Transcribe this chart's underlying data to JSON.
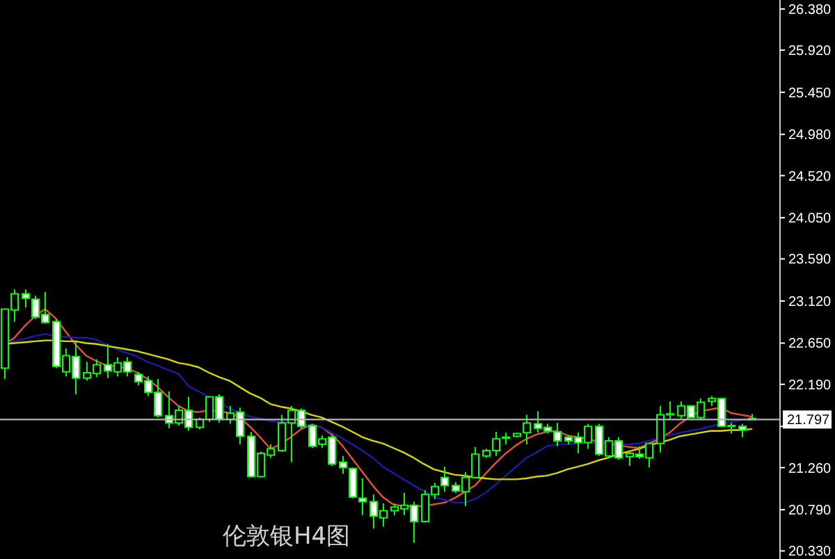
{
  "chart_data": {
    "type": "candlestick",
    "title": "伦敦银H4图",
    "categories": [
      null,
      null,
      null,
      null,
      null,
      null,
      null,
      null,
      null,
      null,
      null,
      null,
      null,
      null,
      null,
      null,
      null,
      null,
      null,
      null,
      null,
      null,
      null,
      null,
      null,
      null,
      null,
      null,
      null,
      null,
      null,
      null,
      null,
      null,
      null,
      null,
      null,
      null,
      null,
      null,
      null,
      null,
      null,
      null,
      null,
      null,
      null,
      null,
      null,
      null,
      null,
      null,
      null,
      null,
      null,
      null,
      null,
      null,
      null,
      null,
      null,
      null,
      null,
      null,
      null,
      null,
      null,
      null,
      null,
      null,
      null,
      null,
      null,
      null
    ],
    "ohlc": [
      [
        22.37,
        23.03,
        22.25,
        23.03
      ],
      [
        23.02,
        23.25,
        22.89,
        23.2
      ],
      [
        23.2,
        23.25,
        23.05,
        23.15
      ],
      [
        23.14,
        23.18,
        22.92,
        22.94
      ],
      [
        22.97,
        23.22,
        22.87,
        22.88
      ],
      [
        22.89,
        22.92,
        22.37,
        22.39
      ],
      [
        22.33,
        22.59,
        22.28,
        22.51
      ],
      [
        22.5,
        22.66,
        22.08,
        22.26
      ],
      [
        22.26,
        22.44,
        22.23,
        22.32
      ],
      [
        22.31,
        22.47,
        22.27,
        22.41
      ],
      [
        22.41,
        22.64,
        22.26,
        22.34
      ],
      [
        22.33,
        22.49,
        22.28,
        22.43
      ],
      [
        22.44,
        22.49,
        22.28,
        22.33
      ],
      [
        22.3,
        22.33,
        22.18,
        22.22
      ],
      [
        22.23,
        22.28,
        22.06,
        22.1
      ],
      [
        22.1,
        22.25,
        21.82,
        21.84
      ],
      [
        21.84,
        22.11,
        21.7,
        21.76
      ],
      [
        21.76,
        21.95,
        21.73,
        21.9
      ],
      [
        21.9,
        22.05,
        21.67,
        21.71
      ],
      [
        21.71,
        21.82,
        21.69,
        21.8
      ],
      [
        21.8,
        22.06,
        21.77,
        22.05
      ],
      [
        22.05,
        22.08,
        21.76,
        21.8
      ],
      [
        21.8,
        21.95,
        21.75,
        21.87
      ],
      [
        21.88,
        21.93,
        21.52,
        21.61
      ],
      [
        21.61,
        21.66,
        21.15,
        21.16
      ],
      [
        21.16,
        21.44,
        21.15,
        21.42
      ],
      [
        21.4,
        21.52,
        21.37,
        21.47
      ],
      [
        21.45,
        21.85,
        21.44,
        21.76
      ],
      [
        21.76,
        21.95,
        21.32,
        21.9
      ],
      [
        21.9,
        21.92,
        21.7,
        21.72
      ],
      [
        21.73,
        21.75,
        21.48,
        21.5
      ],
      [
        21.52,
        21.62,
        21.48,
        21.58
      ],
      [
        21.6,
        21.62,
        21.28,
        21.3
      ],
      [
        21.32,
        21.39,
        21.19,
        21.26
      ],
      [
        21.25,
        21.26,
        20.92,
        20.93
      ],
      [
        20.92,
        21.14,
        20.73,
        20.88
      ],
      [
        20.88,
        20.96,
        20.58,
        20.72
      ],
      [
        20.7,
        20.86,
        20.6,
        20.78
      ],
      [
        20.78,
        20.86,
        20.73,
        20.82
      ],
      [
        20.8,
        20.98,
        20.73,
        20.84
      ],
      [
        20.84,
        20.88,
        20.42,
        20.66
      ],
      [
        20.66,
        21.01,
        20.65,
        20.96
      ],
      [
        20.96,
        21.09,
        20.91,
        21.05
      ],
      [
        21.15,
        21.27,
        20.99,
        21.06
      ],
      [
        21.06,
        21.1,
        20.98,
        21.0
      ],
      [
        20.99,
        21.21,
        20.83,
        21.15
      ],
      [
        21.15,
        21.49,
        21.14,
        21.41
      ],
      [
        21.39,
        21.47,
        21.37,
        21.45
      ],
      [
        21.45,
        21.66,
        21.39,
        21.58
      ],
      [
        21.59,
        21.65,
        21.52,
        21.6
      ],
      [
        21.61,
        21.65,
        21.6,
        21.64
      ],
      [
        21.65,
        21.85,
        21.52,
        21.76
      ],
      [
        21.75,
        21.89,
        21.65,
        21.7
      ],
      [
        21.71,
        21.75,
        21.64,
        21.67
      ],
      [
        21.66,
        21.76,
        21.5,
        21.56
      ],
      [
        21.6,
        21.62,
        21.52,
        21.56
      ],
      [
        21.6,
        21.65,
        21.42,
        21.54
      ],
      [
        21.54,
        21.75,
        21.47,
        21.72
      ],
      [
        21.72,
        21.75,
        21.39,
        21.41
      ],
      [
        21.39,
        21.6,
        21.37,
        21.56
      ],
      [
        21.56,
        21.6,
        21.35,
        21.37
      ],
      [
        21.38,
        21.44,
        21.28,
        21.42
      ],
      [
        21.41,
        21.5,
        21.36,
        21.38
      ],
      [
        21.37,
        21.54,
        21.26,
        21.53
      ],
      [
        21.53,
        21.95,
        21.43,
        21.85
      ],
      [
        21.85,
        22.0,
        21.8,
        21.86
      ],
      [
        21.84,
        22.0,
        21.81,
        21.95
      ],
      [
        21.95,
        21.96,
        21.81,
        21.82
      ],
      [
        21.82,
        22.03,
        21.8,
        21.99
      ],
      [
        22.0,
        22.06,
        21.95,
        22.03
      ],
      [
        22.03,
        22.04,
        21.71,
        21.72
      ],
      [
        21.73,
        21.76,
        21.64,
        21.72
      ],
      [
        21.72,
        21.75,
        21.6,
        21.68
      ],
      [
        21.81,
        21.86,
        21.79,
        21.797
      ]
    ],
    "color": "#00ff00",
    "series": [
      {
        "type": "line",
        "color": "#e8503a",
        "values": [
          22.63,
          22.71,
          22.84,
          22.95,
          23.03,
          22.93,
          22.78,
          22.63,
          22.51,
          22.45,
          22.4,
          22.39,
          22.37,
          22.32,
          22.25,
          22.16,
          22.05,
          21.95,
          21.89,
          21.88,
          21.9,
          21.89,
          21.87,
          21.82,
          21.72,
          21.6,
          21.47,
          21.52,
          21.6,
          21.69,
          21.74,
          21.71,
          21.63,
          21.51,
          21.36,
          21.21,
          21.06,
          20.93,
          20.85,
          20.83,
          20.83,
          20.83,
          20.85,
          20.87,
          20.92,
          20.99,
          21.06,
          21.19,
          21.31,
          21.42,
          21.51,
          21.58,
          21.63,
          21.66,
          21.67,
          21.62,
          21.6,
          21.58,
          21.55,
          21.53,
          21.51,
          21.49,
          21.48,
          21.53,
          21.58,
          21.65,
          21.75,
          21.83,
          21.89,
          21.91,
          21.93,
          21.87,
          21.85,
          21.83
        ]
      },
      {
        "type": "line",
        "color": "#1c1ca8",
        "values": [
          22.65,
          22.67,
          22.7,
          22.73,
          22.75,
          22.73,
          22.72,
          22.71,
          22.71,
          22.69,
          22.63,
          22.58,
          22.54,
          22.5,
          22.44,
          22.4,
          22.35,
          22.31,
          22.17,
          22.11,
          22.05,
          21.99,
          21.92,
          21.88,
          21.83,
          21.81,
          21.78,
          21.77,
          21.76,
          21.74,
          21.73,
          21.71,
          21.65,
          21.59,
          21.52,
          21.45,
          21.37,
          21.27,
          21.2,
          21.13,
          21.06,
          21.0,
          20.93,
          20.9,
          20.87,
          20.87,
          20.91,
          20.98,
          21.07,
          21.17,
          21.27,
          21.37,
          21.43,
          21.5,
          21.52,
          21.52,
          21.53,
          21.54,
          21.54,
          21.54,
          21.53,
          21.52,
          21.53,
          21.56,
          21.59,
          21.62,
          21.65,
          21.67,
          21.69,
          21.72,
          21.75,
          21.77,
          21.79,
          21.8
        ]
      },
      {
        "type": "line",
        "color": "#d8d800",
        "values": [
          22.64,
          22.65,
          22.66,
          22.67,
          22.68,
          22.68,
          22.67,
          22.67,
          22.65,
          22.64,
          22.62,
          22.6,
          22.58,
          22.56,
          22.53,
          22.5,
          22.47,
          22.43,
          22.41,
          22.38,
          22.32,
          22.27,
          22.23,
          22.16,
          22.09,
          22.04,
          21.97,
          21.94,
          21.92,
          21.89,
          21.85,
          21.82,
          21.77,
          21.72,
          21.66,
          21.6,
          21.56,
          21.53,
          21.48,
          21.43,
          21.37,
          21.3,
          21.24,
          21.21,
          21.18,
          21.17,
          21.15,
          21.14,
          21.13,
          21.13,
          21.13,
          21.14,
          21.16,
          21.17,
          21.2,
          21.24,
          21.27,
          21.3,
          21.34,
          21.37,
          21.41,
          21.44,
          21.47,
          21.51,
          21.54,
          21.57,
          21.61,
          21.63,
          21.65,
          21.67,
          21.67,
          21.68,
          21.68,
          21.69
        ]
      }
    ],
    "ylim": [
      20.24,
      26.48
    ],
    "yticks": [
      {
        "value": 26.38,
        "label": "26.380"
      },
      {
        "value": 25.92,
        "label": "25.920"
      },
      {
        "value": 25.45,
        "label": "25.450"
      },
      {
        "value": 24.98,
        "label": "24.980"
      },
      {
        "value": 24.52,
        "label": "24.520"
      },
      {
        "value": 24.05,
        "label": "24.050"
      },
      {
        "value": 23.59,
        "label": "23.590"
      },
      {
        "value": 23.12,
        "label": "23.120"
      },
      {
        "value": 22.65,
        "label": "22.650"
      },
      {
        "value": 22.19,
        "label": "22.190"
      },
      {
        "value": 21.72,
        "label": null
      },
      {
        "value": 21.26,
        "label": "21.260"
      },
      {
        "value": 20.79,
        "label": "20.790"
      },
      {
        "value": 20.33,
        "label": "20.330"
      }
    ],
    "tick_labels": "y",
    "ref_lines": [
      {
        "axis": "y",
        "value": 21.797,
        "label": "21.797",
        "color": "#b4b4b4"
      }
    ]
  }
}
